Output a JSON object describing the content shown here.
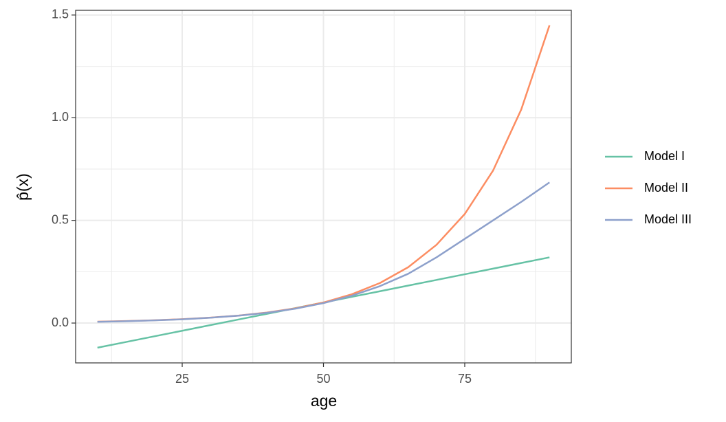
{
  "chart_data": {
    "type": "line",
    "x_label": "age",
    "y_label": "p̂(x)",
    "x": [
      10,
      15,
      20,
      25,
      30,
      35,
      40,
      45,
      50,
      55,
      60,
      65,
      70,
      75,
      80,
      85,
      90
    ],
    "series": [
      {
        "name": "Model I",
        "color": "#66c2a5",
        "values": [
          -0.12,
          -0.0925,
          -0.065,
          -0.0375,
          -0.01,
          0.0175,
          0.045,
          0.0725,
          0.1,
          0.1275,
          0.155,
          0.1825,
          0.21,
          0.2375,
          0.265,
          0.2925,
          0.32
        ]
      },
      {
        "name": "Model II",
        "color": "#fc8d62",
        "values": [
          0.0069,
          0.0097,
          0.0135,
          0.0188,
          0.0263,
          0.0367,
          0.0513,
          0.0716,
          0.1,
          0.14,
          0.195,
          0.272,
          0.381,
          0.531,
          0.742,
          1.04,
          1.45
        ]
      },
      {
        "name": "Model III",
        "color": "#8da0cb",
        "values": [
          0.006,
          0.009,
          0.013,
          0.018,
          0.026,
          0.036,
          0.05,
          0.07,
          0.097,
          0.133,
          0.18,
          0.24,
          0.32,
          0.41,
          0.5,
          0.59,
          0.685
        ]
      }
    ],
    "xlim": [
      6.14,
      93.86
    ],
    "ylim": [
      -0.194,
      1.523
    ],
    "xticks": [
      25,
      50,
      75
    ],
    "yticks": [
      {
        "value": 0,
        "label": "0.0"
      },
      0.5,
      {
        "value": 1,
        "label": "1.0"
      },
      1.5
    ],
    "xminor_ticks": [
      12.5,
      37.5,
      62.5,
      87.5
    ],
    "yminor_ticks": [
      0.25,
      0.75,
      1.25
    ],
    "grid": true,
    "legend": "right"
  }
}
